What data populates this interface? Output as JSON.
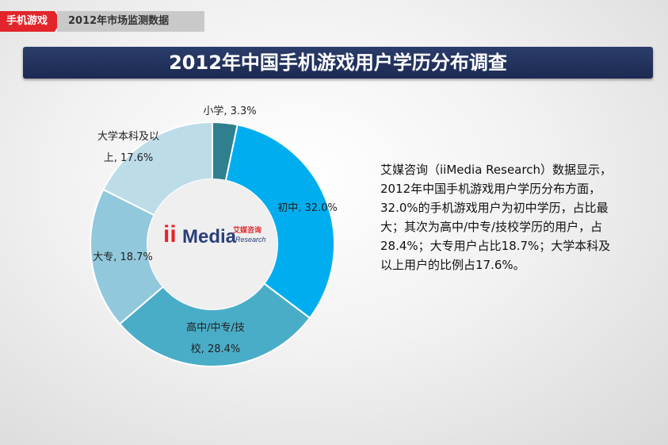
{
  "header": {
    "tag": "手机游戏",
    "breadcrumb": "2012年市场监测数据"
  },
  "title": "2012年中国手机游戏用户学历分布调查",
  "logo": {
    "ii": "ii",
    "media": "Media",
    "cn": "艾媒咨询",
    "research": "Research"
  },
  "description": "艾媒咨询（iiMedia Research）数据显示，2012年中国手机游戏用户学历分布方面，32.0%的手机游戏用户为初中学历，占比最大；其次为高中/中专/技校学历的用户，占28.4%；大专用户占比18.7%；大学本科及以上用户的比例占17.6%。",
  "chart_data": {
    "type": "pie",
    "title": "2012年中国手机游戏用户学历分布调查",
    "categories": [
      "小学",
      "初中",
      "高中/中专/技校",
      "大专",
      "大学本科及以上"
    ],
    "values": [
      3.3,
      32.0,
      28.4,
      18.7,
      17.6
    ],
    "colors": [
      "#2f7f8f",
      "#00aeef",
      "#4aadc8",
      "#92c8dc",
      "#bcdce8"
    ],
    "labels": [
      [
        "小学, 3.3%"
      ],
      [
        "初中, 32.0%"
      ],
      [
        "高中/中专/技",
        "校, 28.4%"
      ],
      [
        "大专, 18.7%"
      ],
      [
        "大学本科及以",
        "上, 17.6%"
      ]
    ]
  }
}
